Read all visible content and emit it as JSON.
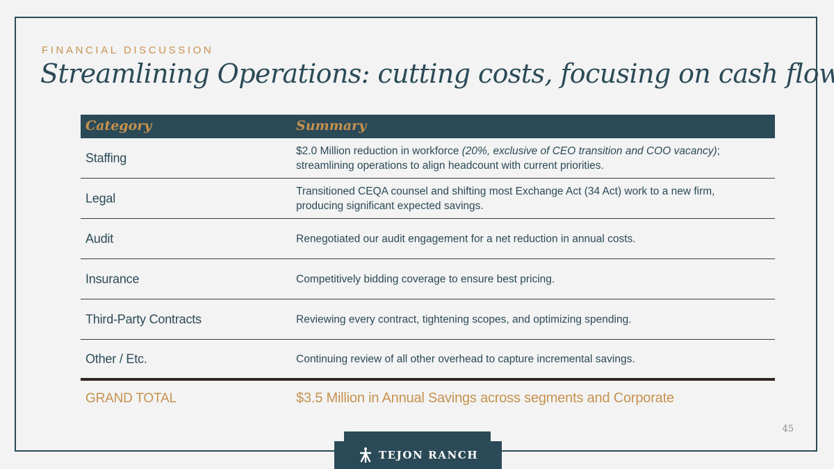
{
  "slide": {
    "eyebrow": "FINANCIAL DISCUSSION",
    "title": "Streamlining Operations: cutting costs, focusing on cash flow",
    "page_number": "45"
  },
  "table": {
    "headers": {
      "category": "Category",
      "summary": "Summary"
    },
    "rows": [
      {
        "category": "Staffing",
        "summary_pre": "$2.0 Million reduction in workforce ",
        "summary_em": "(20%, exclusive of CEO transition and COO vacancy)",
        "summary_post": "; streamlining operations to align headcount with current priorities."
      },
      {
        "category": "Legal",
        "summary": "Transitioned CEQA counsel and shifting most Exchange Act (34 Act) work to a new firm, producing significant expected savings."
      },
      {
        "category": "Audit",
        "summary": "Renegotiated our audit engagement for a net reduction in annual costs."
      },
      {
        "category": "Insurance",
        "summary": "Competitively bidding coverage to ensure best pricing."
      },
      {
        "category": "Third-Party Contracts",
        "summary": "Reviewing every contract, tightening scopes, and optimizing spending."
      },
      {
        "category": "Other / Etc.",
        "summary": "Continuing review of all other overhead to capture incremental savings."
      }
    ],
    "total": {
      "label": "GRAND TOTAL",
      "value": "$3.5 Million in Annual Savings across segments and Corporate"
    }
  },
  "logo": {
    "text": "TEJON RANCH",
    "icon": "cross-figure-icon"
  },
  "colors": {
    "navy": "#2b4a57",
    "gold": "#c6924f",
    "background": "#f3f3f3"
  }
}
